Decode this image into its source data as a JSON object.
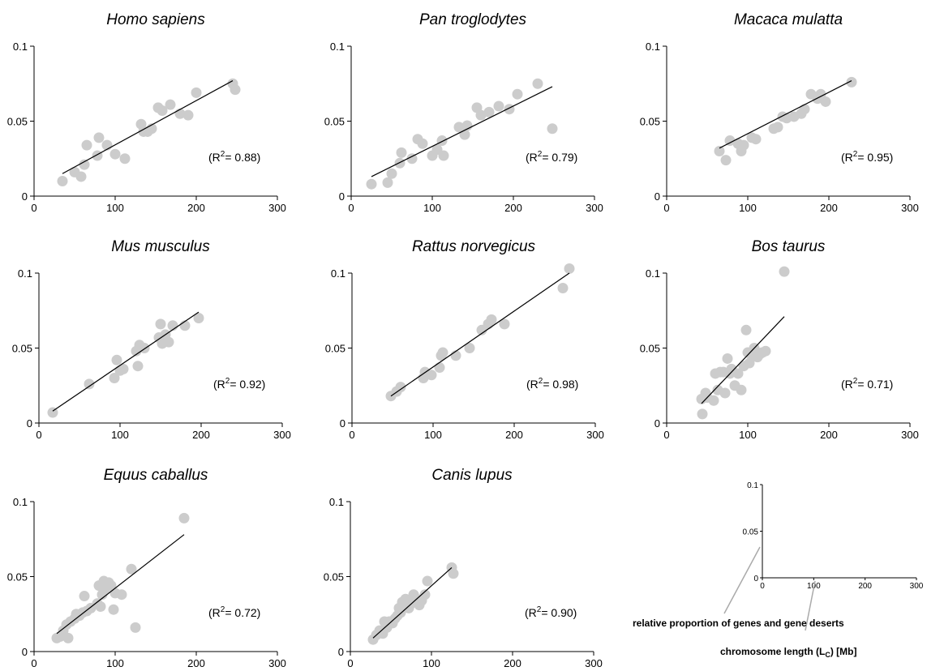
{
  "chart_data": [
    {
      "type": "scatter",
      "title": "Homo sapiens",
      "r2_prefix": "(R",
      "r2_exp": "2",
      "r2_suffix": "= 0.88)",
      "xlim": [
        0,
        300
      ],
      "ylim": [
        0,
        0.1
      ],
      "x_ticks": [
        "0",
        "100",
        "200",
        "300"
      ],
      "y_ticks": [
        "0",
        "0.05",
        "0.1"
      ],
      "x": [
        35,
        50,
        58,
        62,
        65,
        78,
        80,
        90,
        100,
        112,
        132,
        135,
        140,
        145,
        153,
        158,
        168,
        180,
        190,
        200,
        245,
        248
      ],
      "y": [
        0.01,
        0.016,
        0.013,
        0.021,
        0.034,
        0.027,
        0.039,
        0.034,
        0.028,
        0.025,
        0.048,
        0.043,
        0.043,
        0.045,
        0.059,
        0.057,
        0.061,
        0.055,
        0.054,
        0.069,
        0.075,
        0.071
      ],
      "fit": [
        [
          35,
          0.015
        ],
        [
          245,
          0.077
        ]
      ]
    },
    {
      "type": "scatter",
      "title": "Pan troglodytes",
      "r2_prefix": "(R",
      "r2_exp": "2",
      "r2_suffix": "= 0.79)",
      "xlim": [
        0,
        300
      ],
      "ylim": [
        0,
        0.1
      ],
      "x_ticks": [
        "0",
        "100",
        "200",
        "300"
      ],
      "y_ticks": [
        "0",
        "0.05",
        "0.1"
      ],
      "x": [
        25,
        45,
        50,
        60,
        62,
        75,
        82,
        88,
        100,
        106,
        112,
        114,
        133,
        140,
        143,
        155,
        160,
        170,
        182,
        195,
        205,
        230,
        248
      ],
      "y": [
        0.008,
        0.009,
        0.015,
        0.022,
        0.029,
        0.025,
        0.038,
        0.035,
        0.027,
        0.031,
        0.037,
        0.027,
        0.046,
        0.041,
        0.047,
        0.059,
        0.054,
        0.056,
        0.06,
        0.058,
        0.068,
        0.075,
        0.045
      ],
      "fit": [
        [
          25,
          0.013
        ],
        [
          248,
          0.073
        ]
      ]
    },
    {
      "type": "scatter",
      "title": "Macaca mulatta",
      "r2_prefix": "(R",
      "r2_exp": "2",
      "r2_suffix": "= 0.95)",
      "xlim": [
        0,
        300
      ],
      "ylim": [
        0,
        0.1
      ],
      "x_ticks": [
        "0",
        "100",
        "200",
        "300"
      ],
      "y_ticks": [
        "0",
        "0.05",
        "0.1"
      ],
      "x": [
        65,
        73,
        78,
        88,
        92,
        95,
        105,
        110,
        132,
        137,
        143,
        148,
        157,
        166,
        170,
        178,
        186,
        190,
        196,
        228
      ],
      "y": [
        0.03,
        0.024,
        0.037,
        0.035,
        0.03,
        0.034,
        0.039,
        0.038,
        0.045,
        0.046,
        0.053,
        0.052,
        0.053,
        0.055,
        0.058,
        0.068,
        0.065,
        0.068,
        0.063,
        0.076
      ],
      "fit": [
        [
          65,
          0.032
        ],
        [
          228,
          0.077
        ]
      ]
    },
    {
      "type": "scatter",
      "title": "Mus musculus",
      "r2_prefix": "(R",
      "r2_exp": "2",
      "r2_suffix": "= 0.92)",
      "xlim": [
        0,
        300
      ],
      "ylim": [
        0,
        0.1
      ],
      "x_ticks": [
        "0",
        "100",
        "200",
        "300"
      ],
      "y_ticks": [
        "0",
        "0.05",
        "0.1"
      ],
      "x": [
        17,
        62,
        93,
        96,
        100,
        104,
        120,
        122,
        124,
        130,
        148,
        150,
        152,
        156,
        160,
        165,
        180,
        197
      ],
      "y": [
        0.007,
        0.026,
        0.03,
        0.042,
        0.035,
        0.036,
        0.048,
        0.038,
        0.052,
        0.05,
        0.057,
        0.066,
        0.053,
        0.059,
        0.054,
        0.065,
        0.065,
        0.07
      ],
      "fit": [
        [
          17,
          0.008
        ],
        [
          197,
          0.074
        ]
      ]
    },
    {
      "type": "scatter",
      "title": "Rattus norvegicus",
      "r2_prefix": "(R",
      "r2_exp": "2",
      "r2_suffix": "= 0.98)",
      "xlim": [
        0,
        300
      ],
      "ylim": [
        0,
        0.1
      ],
      "x_ticks": [
        "0",
        "100",
        "200",
        "300"
      ],
      "y_ticks": [
        "0",
        "0.05",
        "0.1"
      ],
      "x": [
        48,
        55,
        60,
        88,
        90,
        98,
        108,
        110,
        112,
        128,
        145,
        160,
        168,
        172,
        188,
        260,
        268
      ],
      "y": [
        0.018,
        0.021,
        0.024,
        0.03,
        0.034,
        0.032,
        0.037,
        0.045,
        0.047,
        0.045,
        0.05,
        0.062,
        0.066,
        0.069,
        0.066,
        0.09,
        0.103
      ],
      "fit": [
        [
          48,
          0.018
        ],
        [
          268,
          0.1
        ]
      ]
    },
    {
      "type": "scatter",
      "title": "Bos taurus",
      "r2_prefix": "(R",
      "r2_exp": "2",
      "r2_suffix": "= 0.71)",
      "xlim": [
        0,
        300
      ],
      "ylim": [
        0,
        0.1
      ],
      "x_ticks": [
        "0",
        "100",
        "200",
        "300"
      ],
      "y_ticks": [
        "0",
        "0.05",
        "0.1"
      ],
      "x": [
        43,
        44,
        48,
        50,
        58,
        60,
        63,
        66,
        70,
        72,
        75,
        78,
        80,
        84,
        88,
        92,
        95,
        98,
        100,
        102,
        105,
        108,
        110,
        112,
        115,
        118,
        122,
        145
      ],
      "y": [
        0.016,
        0.006,
        0.02,
        0.017,
        0.015,
        0.033,
        0.022,
        0.034,
        0.034,
        0.02,
        0.043,
        0.033,
        0.036,
        0.025,
        0.033,
        0.022,
        0.038,
        0.062,
        0.047,
        0.04,
        0.045,
        0.05,
        0.047,
        0.044,
        0.046,
        0.047,
        0.048,
        0.101
      ],
      "fit": [
        [
          43,
          0.013
        ],
        [
          145,
          0.071
        ]
      ]
    },
    {
      "type": "scatter",
      "title": "Equus caballus",
      "r2_prefix": "(R",
      "r2_exp": "2",
      "r2_suffix": "= 0.72)",
      "xlim": [
        0,
        300
      ],
      "ylim": [
        0,
        0.1
      ],
      "x_ticks": [
        "0",
        "100",
        "200",
        "300"
      ],
      "y_ticks": [
        "0",
        "0.05",
        "0.1"
      ],
      "x": [
        28,
        32,
        36,
        40,
        42,
        45,
        50,
        52,
        56,
        60,
        62,
        65,
        70,
        78,
        80,
        82,
        84,
        86,
        88,
        92,
        95,
        98,
        100,
        108,
        120,
        125,
        185
      ],
      "y": [
        0.009,
        0.01,
        0.014,
        0.018,
        0.009,
        0.02,
        0.022,
        0.025,
        0.024,
        0.026,
        0.037,
        0.027,
        0.029,
        0.032,
        0.044,
        0.03,
        0.038,
        0.047,
        0.042,
        0.046,
        0.044,
        0.028,
        0.039,
        0.038,
        0.055,
        0.016,
        0.089
      ],
      "fit": [
        [
          28,
          0.012
        ],
        [
          185,
          0.078
        ]
      ]
    },
    {
      "type": "scatter",
      "title": "Canis lupus",
      "r2_prefix": "(R",
      "r2_exp": "2",
      "r2_suffix": "= 0.90)",
      "xlim": [
        0,
        300
      ],
      "ylim": [
        0,
        0.1
      ],
      "x_ticks": [
        "0",
        "100",
        "200",
        "300"
      ],
      "y_ticks": [
        "0",
        "0.05",
        "0.1"
      ],
      "x": [
        28,
        32,
        36,
        40,
        42,
        45,
        48,
        52,
        55,
        58,
        60,
        62,
        64,
        66,
        68,
        70,
        72,
        75,
        78,
        82,
        85,
        88,
        92,
        95,
        125,
        127
      ],
      "y": [
        0.008,
        0.011,
        0.014,
        0.012,
        0.02,
        0.016,
        0.02,
        0.019,
        0.022,
        0.024,
        0.029,
        0.026,
        0.033,
        0.031,
        0.035,
        0.03,
        0.029,
        0.032,
        0.038,
        0.035,
        0.031,
        0.034,
        0.038,
        0.047,
        0.056,
        0.052
      ],
      "fit": [
        [
          28,
          0.009
        ],
        [
          125,
          0.056
        ]
      ]
    }
  ],
  "legend": {
    "x_ticks": [
      "0",
      "100",
      "200",
      "300"
    ],
    "y_ticks": [
      "0",
      "0.05",
      "0.1"
    ],
    "y_label": "relative proportion of genes and gene deserts",
    "x_label_main": "chromosome length (L",
    "x_label_sub": "C",
    "x_label_end": ") [Mb]"
  },
  "colors": {
    "point": "#cccccc",
    "line": "#000000"
  }
}
